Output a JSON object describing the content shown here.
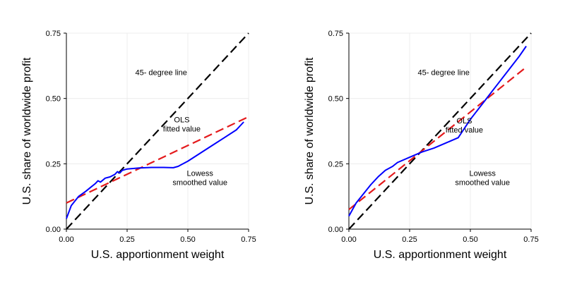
{
  "chart_data": [
    {
      "type": "line",
      "xlabel": "U.S. apportionment weight",
      "ylabel": "U.S. share of worldwide profit",
      "xlim": [
        0,
        0.75
      ],
      "ylim": [
        0,
        0.75
      ],
      "x_ticks": [
        "0.00",
        "0.25",
        "0.50",
        "0.75"
      ],
      "y_ticks": [
        "0.00",
        "0.25",
        "0.50",
        "0.75"
      ],
      "grid": true,
      "series": [
        {
          "style": "dashed",
          "color": "#000000",
          "x": [
            0,
            0.75
          ],
          "y": [
            0,
            0.75
          ]
        },
        {
          "style": "dashed",
          "color": "#e41a1c",
          "x": [
            0,
            0.75
          ],
          "y": [
            0.1,
            0.43
          ]
        },
        {
          "style": "solid",
          "color": "#0000ff",
          "x": [
            0,
            0.02,
            0.05,
            0.08,
            0.1,
            0.12,
            0.13,
            0.14,
            0.16,
            0.18,
            0.2,
            0.21,
            0.22,
            0.23,
            0.25,
            0.3,
            0.35,
            0.4,
            0.44,
            0.46,
            0.5,
            0.55,
            0.6,
            0.65,
            0.7,
            0.73
          ],
          "y": [
            0.04,
            0.09,
            0.125,
            0.145,
            0.16,
            0.175,
            0.185,
            0.18,
            0.195,
            0.2,
            0.21,
            0.22,
            0.215,
            0.225,
            0.23,
            0.234,
            0.236,
            0.236,
            0.235,
            0.24,
            0.26,
            0.29,
            0.32,
            0.35,
            0.38,
            0.41
          ]
        }
      ],
      "annotations": [
        {
          "text": "45- degree line",
          "x": 0.39,
          "y": 0.6
        },
        {
          "text": "OLS",
          "x": 0.475,
          "y": 0.42
        },
        {
          "text": "fitted value",
          "x": 0.475,
          "y": 0.385
        },
        {
          "text": "Lowess",
          "x": 0.55,
          "y": 0.215
        },
        {
          "text": "smoothed value",
          "x": 0.55,
          "y": 0.18
        }
      ]
    },
    {
      "type": "line",
      "xlabel": "U.S. apportionment weight",
      "ylabel": "U.S. share of worldwide profit",
      "xlim": [
        0,
        0.75
      ],
      "ylim": [
        0,
        0.75
      ],
      "x_ticks": [
        "0.00",
        "0.25",
        "0.50",
        "0.75"
      ],
      "y_ticks": [
        "0.00",
        "0.25",
        "0.50",
        "0.75"
      ],
      "grid": true,
      "series": [
        {
          "style": "dashed",
          "color": "#000000",
          "x": [
            0,
            0.75
          ],
          "y": [
            0,
            0.75
          ]
        },
        {
          "style": "dashed",
          "color": "#e41a1c",
          "x": [
            0,
            0.73
          ],
          "y": [
            0.075,
            0.62
          ]
        },
        {
          "style": "solid",
          "color": "#0000ff",
          "x": [
            0,
            0.03,
            0.06,
            0.09,
            0.12,
            0.15,
            0.16,
            0.18,
            0.2,
            0.25,
            0.3,
            0.35,
            0.4,
            0.45,
            0.5,
            0.55,
            0.6,
            0.65,
            0.7,
            0.73
          ],
          "y": [
            0.05,
            0.1,
            0.135,
            0.17,
            0.2,
            0.225,
            0.23,
            0.24,
            0.255,
            0.275,
            0.295,
            0.31,
            0.33,
            0.35,
            0.42,
            0.48,
            0.54,
            0.6,
            0.66,
            0.7
          ]
        }
      ],
      "annotations": [
        {
          "text": "45- degree line",
          "x": 0.39,
          "y": 0.6
        },
        {
          "text": "OLS",
          "x": 0.475,
          "y": 0.415
        },
        {
          "text": "fitted value",
          "x": 0.475,
          "y": 0.38
        },
        {
          "text": "Lowess",
          "x": 0.55,
          "y": 0.215
        },
        {
          "text": "smoothed value",
          "x": 0.55,
          "y": 0.18
        }
      ]
    }
  ]
}
